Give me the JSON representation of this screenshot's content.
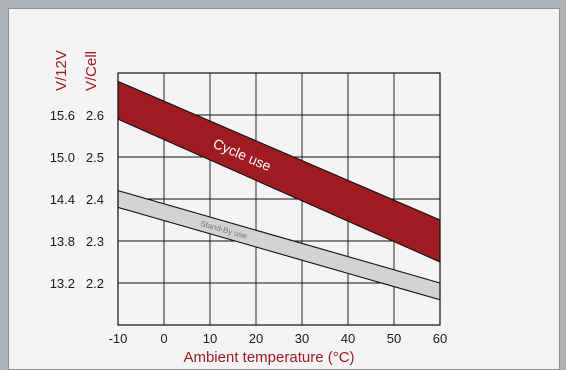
{
  "chart_data": {
    "type": "area",
    "xlabel": "Ambient temperature (°C)",
    "ylabel_left": "V/12V",
    "ylabel_right": "V/Cell",
    "xlim": [
      -10,
      60
    ],
    "ylim_cell": [
      2.1,
      2.7
    ],
    "x_ticks": [
      "-10",
      "0",
      "10",
      "20",
      "30",
      "40",
      "50",
      "60"
    ],
    "y_ticks_12v": [
      "15.6",
      "15.0",
      "14.4",
      "13.8",
      "13.2"
    ],
    "y_ticks_cell": [
      "2.6",
      "2.5",
      "2.4",
      "2.3",
      "2.2"
    ],
    "grid": true,
    "series": [
      {
        "name": "Cycle use",
        "color": "#9e1b22",
        "x": [
          -10,
          60
        ],
        "upper": [
          2.68,
          2.35
        ],
        "lower": [
          2.59,
          2.25
        ]
      },
      {
        "name": "Stand-By use",
        "color": "#d3d3d5",
        "x": [
          -10,
          60
        ],
        "upper": [
          2.42,
          2.2
        ],
        "lower": [
          2.38,
          2.16
        ]
      }
    ]
  }
}
